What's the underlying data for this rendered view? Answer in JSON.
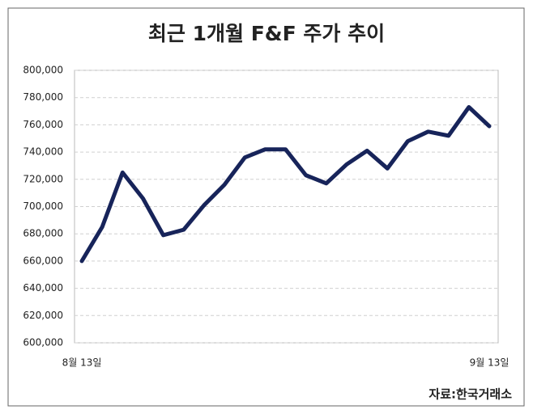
{
  "chart_data": {
    "type": "line",
    "title": "최근 1개월 F&F 주가 추이",
    "source": "자료:한국거래소",
    "categories": [
      "8월 13일",
      null,
      null,
      null,
      null,
      null,
      null,
      null,
      null,
      null,
      null,
      null,
      null,
      null,
      null,
      null,
      null,
      null,
      null,
      null,
      "9월 13일"
    ],
    "series": [
      {
        "name": "F&F",
        "color": "#17245a",
        "values": [
          660000,
          685000,
          725000,
          706000,
          679000,
          683000,
          701000,
          716000,
          736000,
          742000,
          742000,
          723000,
          717000,
          731000,
          741000,
          728000,
          748000,
          755000,
          752000,
          773000,
          759000
        ]
      }
    ],
    "ylim": [
      600000,
      800000
    ],
    "yticks": [
      {
        "value": 600000,
        "label": "600,000"
      },
      {
        "value": 620000,
        "label": "620,000"
      },
      {
        "value": 640000,
        "label": "640,000"
      },
      {
        "value": 660000,
        "label": "660,000"
      },
      {
        "value": 680000,
        "label": "680,000"
      },
      {
        "value": 700000,
        "label": "700,000"
      },
      {
        "value": 720000,
        "label": "720,000"
      },
      {
        "value": 740000,
        "label": "740,000"
      },
      {
        "value": 760000,
        "label": "760,000"
      },
      {
        "value": 780000,
        "label": "780,000"
      },
      {
        "value": 800000,
        "label": "800,000"
      }
    ],
    "grid": true
  }
}
